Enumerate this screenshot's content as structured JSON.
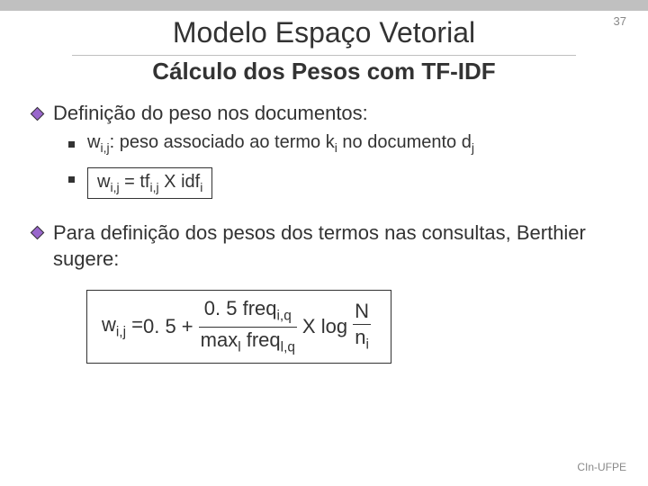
{
  "slide_number": "37",
  "title": "Modelo Espaço Vetorial",
  "subtitle": "Cálculo dos Pesos com TF-IDF",
  "bullet_def": "Definição do peso nos documentos:",
  "sub1_pre": "w",
  "sub1_sub": "i,j",
  "sub1_mid": ": peso associado ao termo k",
  "sub1_sub2": "i",
  "sub1_mid2": " no documento d",
  "sub1_sub3": "j",
  "formula_w": "w",
  "formula_ij": "i,j",
  "formula_eq": " = tf",
  "formula_ij2": "i,j",
  "formula_x": " X idf",
  "formula_i": "i",
  "para_prefix": " Para definição dos pesos dos termos nas consultas, Berthier sugere:",
  "bf_w": "w",
  "bf_ij": "i,j",
  "bf_eq": " = ",
  "bf_half1": "0. 5 + ",
  "bf_frac1_top_a": "0. 5 freq",
  "bf_frac1_top_sub": "i,q",
  "bf_frac1_bot_a": "max",
  "bf_frac1_bot_sub1": "l",
  "bf_frac1_bot_b": " freq",
  "bf_frac1_bot_sub2": "l,q",
  "bf_xlog": " X  log ",
  "bf_frac2_top": "N",
  "bf_frac2_bot_a": "n",
  "bf_frac2_bot_sub": "i",
  "footer": "CIn-UFPE"
}
